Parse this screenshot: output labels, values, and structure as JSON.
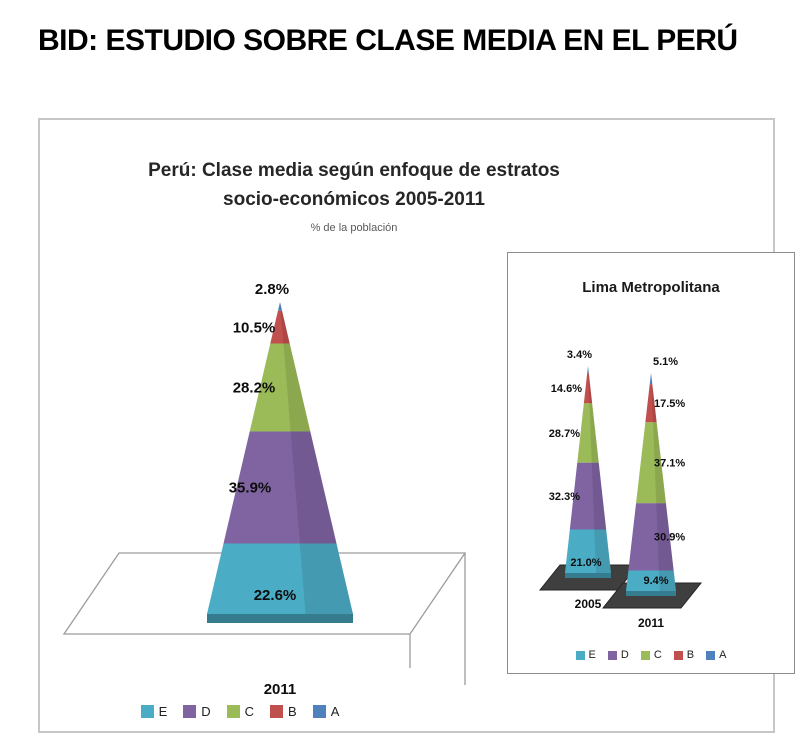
{
  "page": {
    "heading": "BID: ESTUDIO SOBRE CLASE MEDIA EN EL PERÚ"
  },
  "chart_data": {
    "type": "pyramid",
    "title": "Perú: Clase media según enfoque de estratos socio-económicos 2005-2011",
    "title_lines": [
      "Perú: Clase media según enfoque de estratos",
      "socio-económicos 2005-2011"
    ],
    "subtitle": "% de la población",
    "strata_bottom_to_top": [
      "E",
      "D",
      "C",
      "B",
      "A"
    ],
    "colors": {
      "E": "#4BACC6",
      "D": "#8064A2",
      "C": "#9BBB59",
      "B": "#C0504D",
      "A": "#4F81BD"
    },
    "main_pyramid": {
      "category": "2011",
      "values": {
        "E": 22.6,
        "D": 35.9,
        "C": 28.2,
        "B": 10.5,
        "A": 2.8
      }
    },
    "inset": {
      "title": "Lima Metropolitana",
      "pyramids": [
        {
          "category": "2005",
          "values": {
            "E": 21.0,
            "D": 32.3,
            "C": 28.7,
            "B": 14.6,
            "A": 3.4
          }
        },
        {
          "category": "2011",
          "values": {
            "E": 9.4,
            "D": 30.9,
            "C": 37.1,
            "B": 17.5,
            "A": 5.1
          }
        }
      ]
    },
    "legend": [
      "E",
      "D",
      "C",
      "B",
      "A"
    ]
  }
}
